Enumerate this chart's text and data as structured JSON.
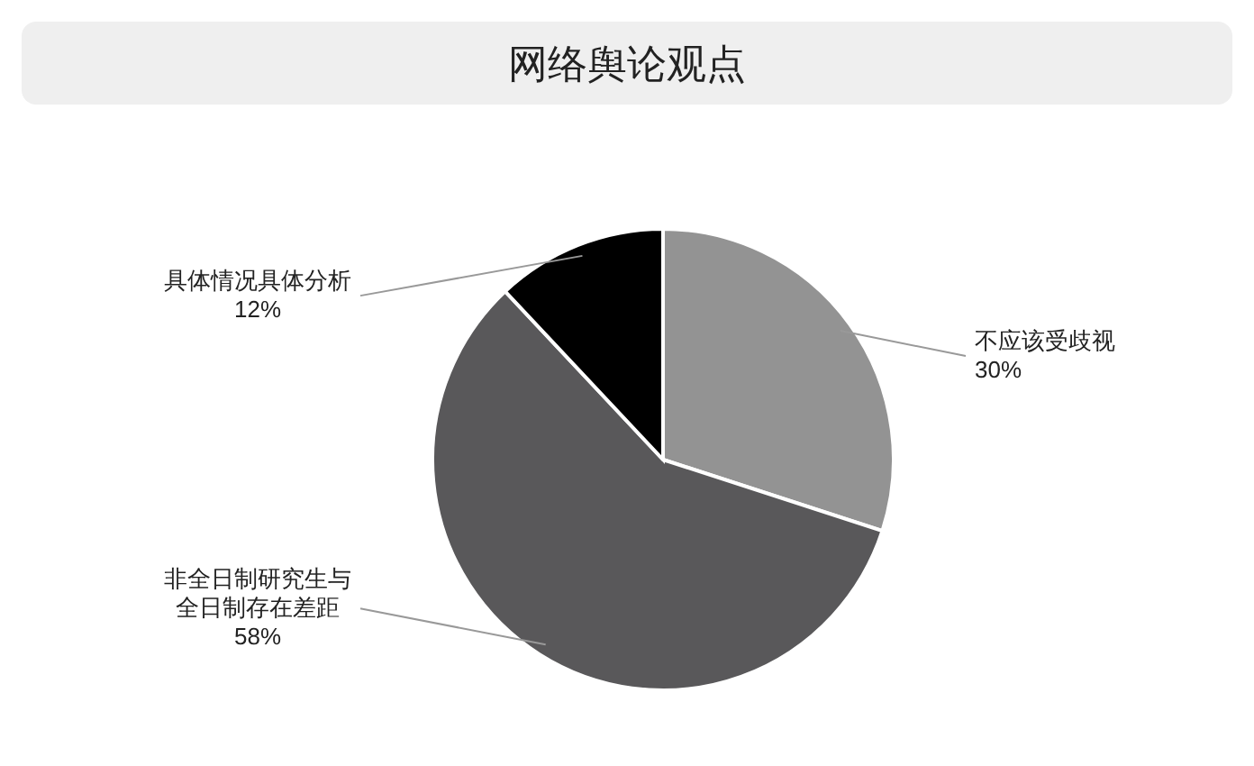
{
  "chart_data": {
    "type": "pie",
    "title": "网络舆论观点",
    "categories": [
      "不应该受歧视",
      "非全日制研究生与全日制存在差距",
      "具体情况具体分析"
    ],
    "values": [
      30,
      58,
      12
    ],
    "value_labels": [
      "30%",
      "58%",
      "12%"
    ],
    "colors": [
      "#939393",
      "#59585a",
      "#000000"
    ]
  }
}
